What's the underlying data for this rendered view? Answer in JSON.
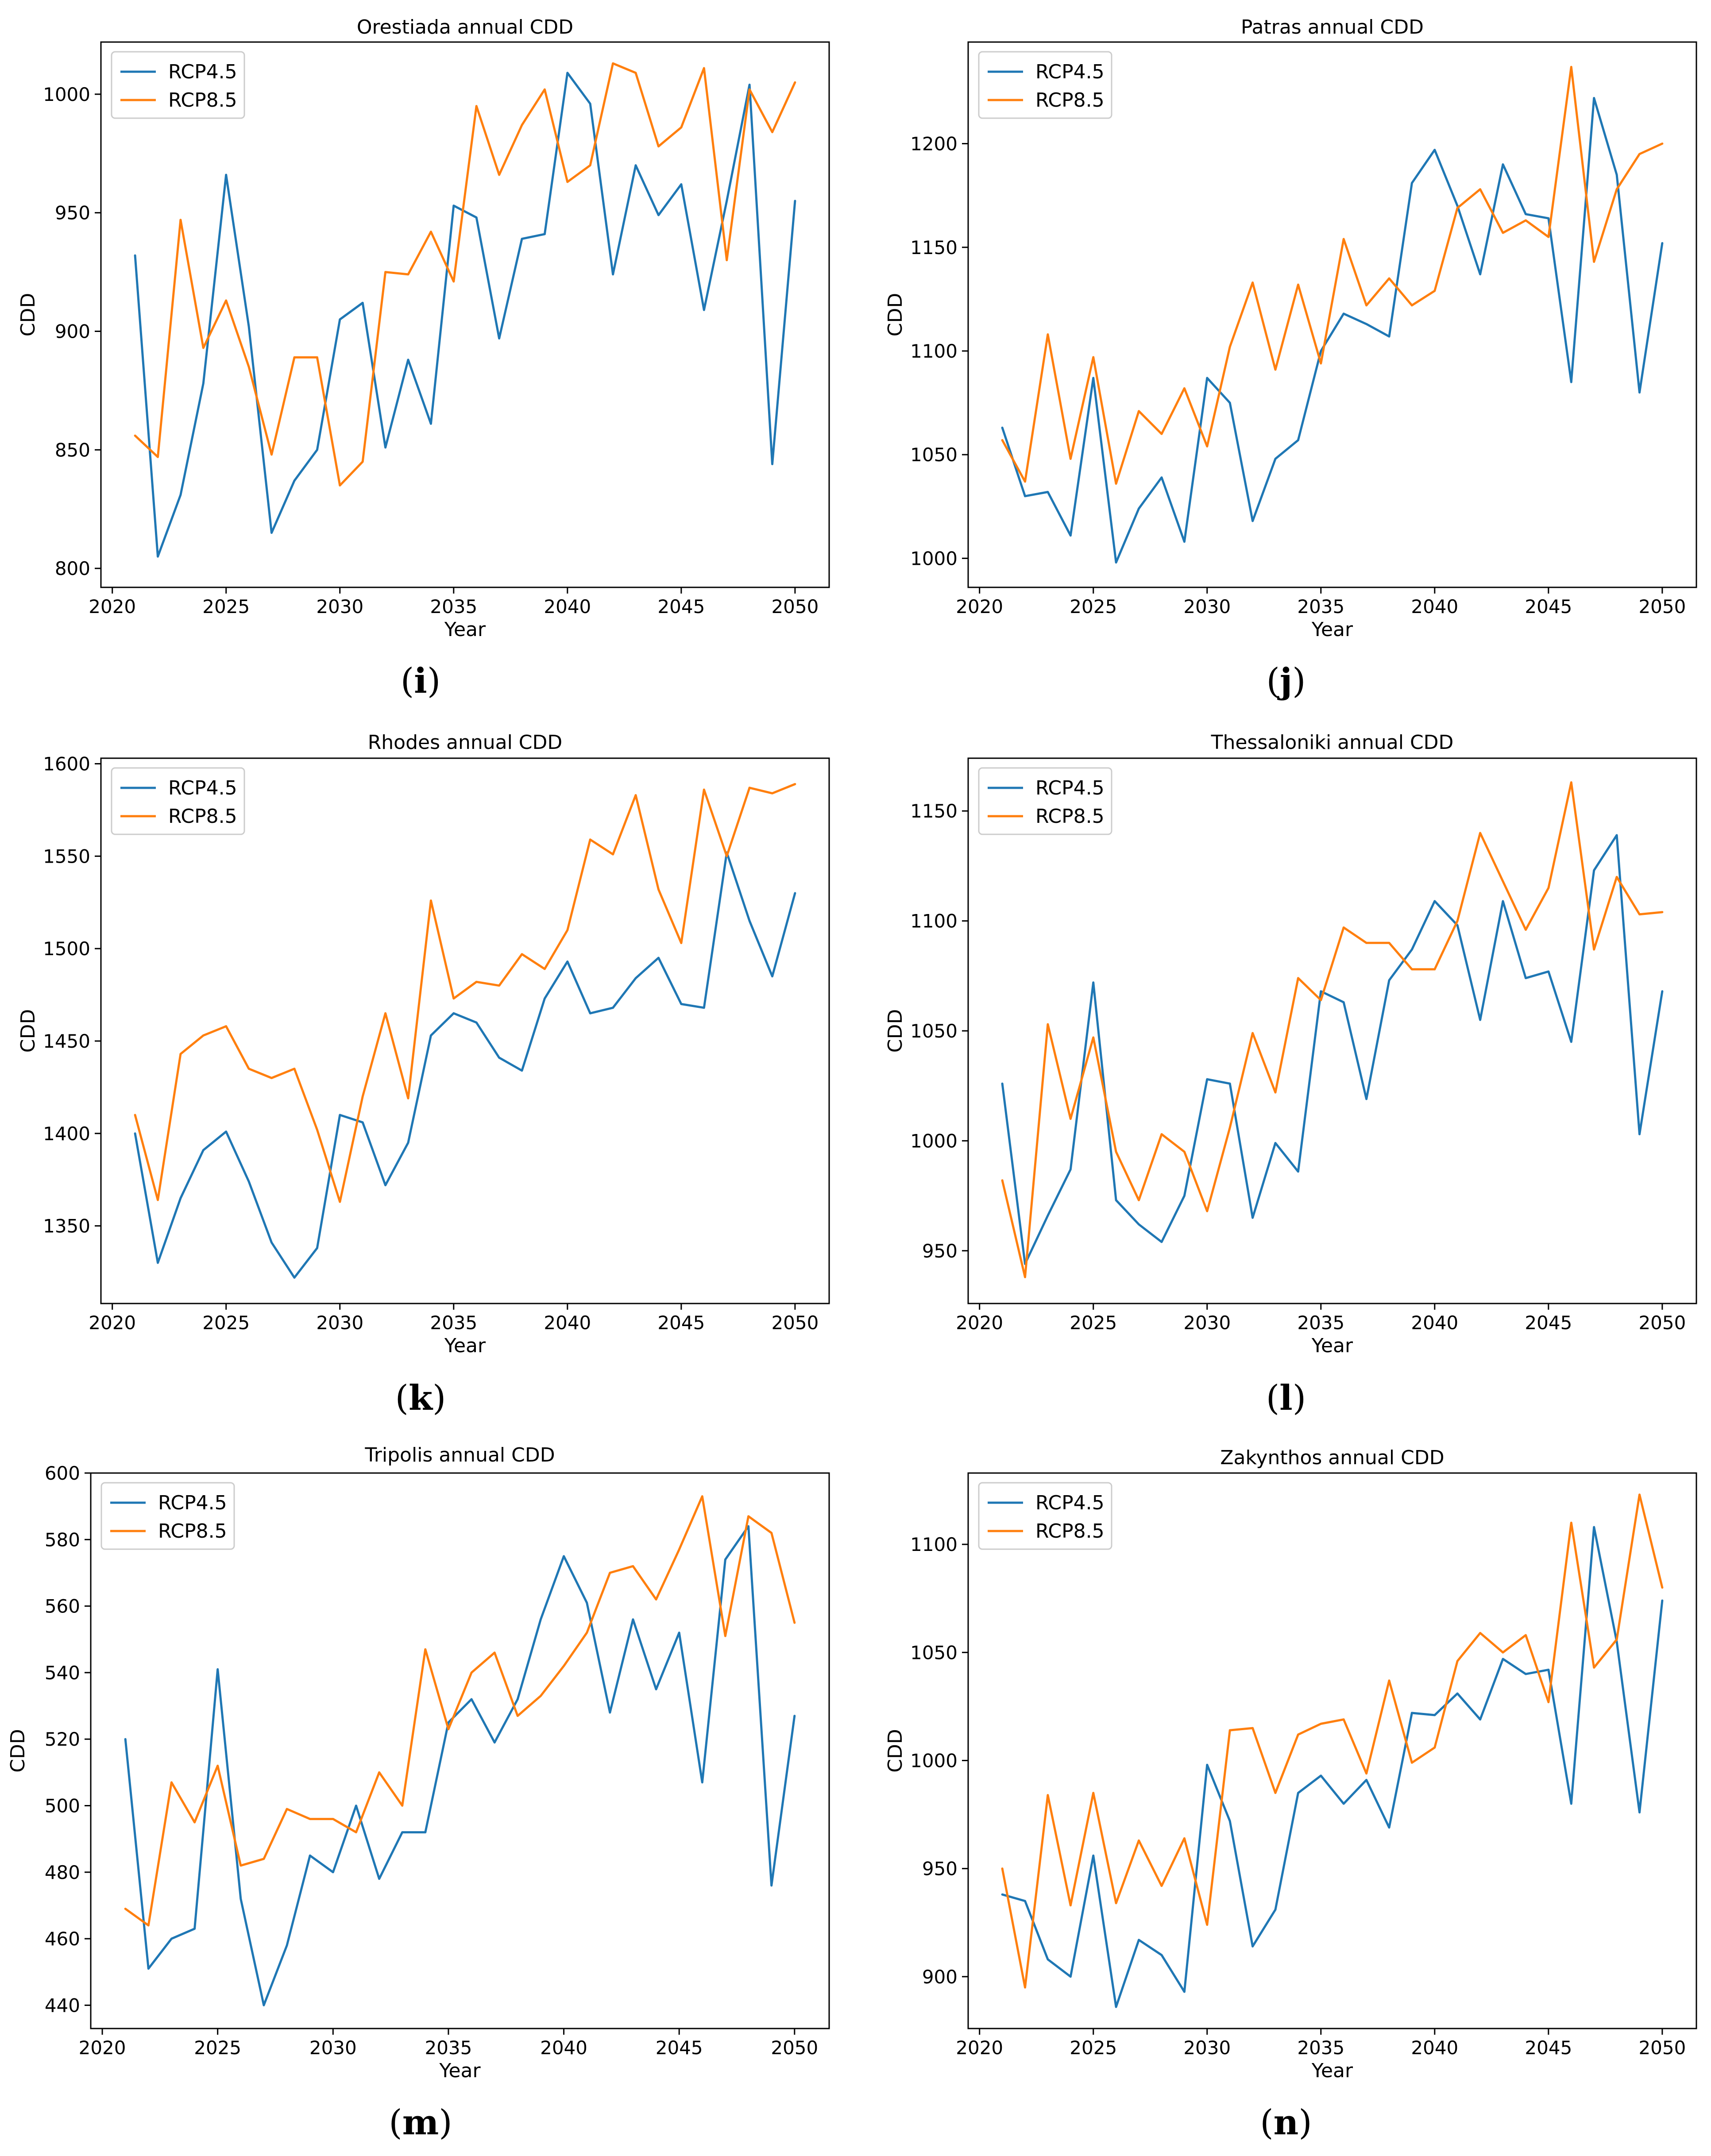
{
  "colors": {
    "RCP4.5": "#1f77b4",
    "RCP8.5": "#ff7f0e"
  },
  "chart_data": [
    {
      "type": "line",
      "panel": "i",
      "title": "Orestiada annual CDD",
      "xlabel": "Year",
      "ylabel": "CDD",
      "xlim": [
        2019.5,
        2051.5
      ],
      "ylim": [
        792,
        1022
      ],
      "xticks": [
        2020,
        2025,
        2030,
        2035,
        2040,
        2045,
        2050
      ],
      "yticks": [
        800,
        850,
        900,
        950,
        1000
      ],
      "legend": [
        "RCP4.5",
        "RCP8.5"
      ],
      "legend_position": "upper-left",
      "x": [
        2021,
        2022,
        2023,
        2024,
        2025,
        2026,
        2027,
        2028,
        2029,
        2030,
        2031,
        2032,
        2033,
        2034,
        2035,
        2036,
        2037,
        2038,
        2039,
        2040,
        2041,
        2042,
        2043,
        2044,
        2045,
        2046,
        2047,
        2048,
        2049,
        2050
      ],
      "series": [
        {
          "name": "RCP4.5",
          "values": [
            932,
            805,
            831,
            878,
            966,
            902,
            815,
            837,
            850,
            905,
            912,
            851,
            888,
            861,
            953,
            948,
            897,
            939,
            941,
            1009,
            996,
            924,
            970,
            949,
            962,
            909,
            955,
            1004,
            844,
            955
          ]
        },
        {
          "name": "RCP8.5",
          "values": [
            856,
            847,
            947,
            893,
            913,
            885,
            848,
            889,
            889,
            835,
            845,
            925,
            924,
            942,
            921,
            995,
            966,
            987,
            1002,
            963,
            970,
            1013,
            1009,
            978,
            986,
            1011,
            930,
            1002,
            984,
            1005
          ]
        }
      ]
    },
    {
      "type": "line",
      "panel": "j",
      "title": "Patras annual CDD",
      "xlabel": "Year",
      "ylabel": "CDD",
      "xlim": [
        2019.5,
        2051.5
      ],
      "ylim": [
        986,
        1249
      ],
      "xticks": [
        2020,
        2025,
        2030,
        2035,
        2040,
        2045,
        2050
      ],
      "yticks": [
        1000,
        1050,
        1100,
        1150,
        1200
      ],
      "legend": [
        "RCP4.5",
        "RCP8.5"
      ],
      "legend_position": "upper-left",
      "x": [
        2021,
        2022,
        2023,
        2024,
        2025,
        2026,
        2027,
        2028,
        2029,
        2030,
        2031,
        2032,
        2033,
        2034,
        2035,
        2036,
        2037,
        2038,
        2039,
        2040,
        2041,
        2042,
        2043,
        2044,
        2045,
        2046,
        2047,
        2048,
        2049,
        2050
      ],
      "series": [
        {
          "name": "RCP4.5",
          "values": [
            1063,
            1030,
            1032,
            1011,
            1087,
            998,
            1024,
            1039,
            1008,
            1087,
            1075,
            1018,
            1048,
            1057,
            1100,
            1118,
            1113,
            1107,
            1181,
            1197,
            1170,
            1137,
            1190,
            1166,
            1164,
            1085,
            1222,
            1185,
            1080,
            1152
          ]
        },
        {
          "name": "RCP8.5",
          "values": [
            1057,
            1037,
            1108,
            1048,
            1097,
            1036,
            1071,
            1060,
            1082,
            1054,
            1102,
            1133,
            1091,
            1132,
            1094,
            1154,
            1122,
            1135,
            1122,
            1129,
            1169,
            1178,
            1157,
            1163,
            1155,
            1237,
            1143,
            1178,
            1195,
            1200
          ]
        }
      ]
    },
    {
      "type": "line",
      "panel": "k",
      "title": "Rhodes annual CDD",
      "xlabel": "Year",
      "ylabel": "CDD",
      "xlim": [
        2019.5,
        2051.5
      ],
      "ylim": [
        1308,
        1603
      ],
      "xticks": [
        2020,
        2025,
        2030,
        2035,
        2040,
        2045,
        2050
      ],
      "yticks": [
        1350,
        1400,
        1450,
        1500,
        1550,
        1600
      ],
      "legend": [
        "RCP4.5",
        "RCP8.5"
      ],
      "legend_position": "upper-left",
      "x": [
        2021,
        2022,
        2023,
        2024,
        2025,
        2026,
        2027,
        2028,
        2029,
        2030,
        2031,
        2032,
        2033,
        2034,
        2035,
        2036,
        2037,
        2038,
        2039,
        2040,
        2041,
        2042,
        2043,
        2044,
        2045,
        2046,
        2047,
        2048,
        2049,
        2050
      ],
      "series": [
        {
          "name": "RCP4.5",
          "values": [
            1400,
            1330,
            1365,
            1391,
            1401,
            1374,
            1341,
            1322,
            1338,
            1410,
            1406,
            1372,
            1395,
            1453,
            1465,
            1460,
            1441,
            1434,
            1473,
            1493,
            1465,
            1468,
            1484,
            1495,
            1470,
            1468,
            1552,
            1515,
            1485,
            1530
          ]
        },
        {
          "name": "RCP8.5",
          "values": [
            1410,
            1364,
            1443,
            1453,
            1458,
            1435,
            1430,
            1435,
            1402,
            1363,
            1420,
            1465,
            1419,
            1526,
            1473,
            1482,
            1480,
            1497,
            1489,
            1510,
            1559,
            1551,
            1583,
            1532,
            1503,
            1586,
            1550,
            1587,
            1584,
            1589
          ]
        }
      ]
    },
    {
      "type": "line",
      "panel": "l",
      "title": "Thessaloniki annual CDD",
      "xlabel": "Year",
      "ylabel": "CDD",
      "xlim": [
        2019.5,
        2051.5
      ],
      "ylim": [
        926,
        1174
      ],
      "xticks": [
        2020,
        2025,
        2030,
        2035,
        2040,
        2045,
        2050
      ],
      "yticks": [
        950,
        1000,
        1050,
        1100,
        1150
      ],
      "legend": [
        "RCP4.5",
        "RCP8.5"
      ],
      "legend_position": "upper-left",
      "x": [
        2021,
        2022,
        2023,
        2024,
        2025,
        2026,
        2027,
        2028,
        2029,
        2030,
        2031,
        2032,
        2033,
        2034,
        2035,
        2036,
        2037,
        2038,
        2039,
        2040,
        2041,
        2042,
        2043,
        2044,
        2045,
        2046,
        2047,
        2048,
        2049,
        2050
      ],
      "series": [
        {
          "name": "RCP4.5",
          "values": [
            1026,
            944,
            966,
            987,
            1072,
            973,
            962,
            954,
            975,
            1028,
            1026,
            965,
            999,
            986,
            1068,
            1063,
            1019,
            1073,
            1087,
            1109,
            1098,
            1055,
            1109,
            1074,
            1077,
            1045,
            1123,
            1139,
            1003,
            1068
          ]
        },
        {
          "name": "RCP8.5",
          "values": [
            982,
            938,
            1053,
            1010,
            1047,
            995,
            973,
            1003,
            995,
            968,
            1006,
            1049,
            1022,
            1074,
            1064,
            1097,
            1090,
            1090,
            1078,
            1078,
            1100,
            1140,
            1118,
            1096,
            1115,
            1163,
            1087,
            1120,
            1103,
            1104
          ]
        }
      ]
    },
    {
      "type": "line",
      "panel": "m",
      "title": "Tripolis annual CDD",
      "xlabel": "Year",
      "ylabel": "CDD",
      "xlim": [
        2019.5,
        2051.5
      ],
      "ylim": [
        433,
        600
      ],
      "xticks": [
        2020,
        2025,
        2030,
        2035,
        2040,
        2045,
        2050
      ],
      "yticks": [
        440,
        460,
        480,
        500,
        520,
        540,
        560,
        580,
        600
      ],
      "legend": [
        "RCP4.5",
        "RCP8.5"
      ],
      "legend_position": "upper-left",
      "x": [
        2021,
        2022,
        2023,
        2024,
        2025,
        2026,
        2027,
        2028,
        2029,
        2030,
        2031,
        2032,
        2033,
        2034,
        2035,
        2036,
        2037,
        2038,
        2039,
        2040,
        2041,
        2042,
        2043,
        2044,
        2045,
        2046,
        2047,
        2048,
        2049,
        2050
      ],
      "series": [
        {
          "name": "RCP4.5",
          "values": [
            520,
            451,
            460,
            463,
            541,
            472,
            440,
            458,
            485,
            480,
            500,
            478,
            492,
            492,
            525,
            532,
            519,
            532,
            556,
            575,
            561,
            528,
            556,
            535,
            552,
            507,
            574,
            584,
            476,
            527
          ]
        },
        {
          "name": "RCP8.5",
          "values": [
            469,
            464,
            507,
            495,
            512,
            482,
            484,
            499,
            496,
            496,
            492,
            510,
            500,
            547,
            523,
            540,
            546,
            527,
            533,
            542,
            552,
            570,
            572,
            562,
            577,
            593,
            551,
            587,
            582,
            555
          ]
        }
      ]
    },
    {
      "type": "line",
      "panel": "n",
      "title": "Zakynthos annual CDD",
      "xlabel": "Year",
      "ylabel": "CDD",
      "xlim": [
        2019.5,
        2051.5
      ],
      "ylim": [
        876,
        1133
      ],
      "xticks": [
        2020,
        2025,
        2030,
        2035,
        2040,
        2045,
        2050
      ],
      "yticks": [
        900,
        950,
        1000,
        1050,
        1100
      ],
      "legend": [
        "RCP4.5",
        "RCP8.5"
      ],
      "legend_position": "upper-left",
      "x": [
        2021,
        2022,
        2023,
        2024,
        2025,
        2026,
        2027,
        2028,
        2029,
        2030,
        2031,
        2032,
        2033,
        2034,
        2035,
        2036,
        2037,
        2038,
        2039,
        2040,
        2041,
        2042,
        2043,
        2044,
        2045,
        2046,
        2047,
        2048,
        2049,
        2050
      ],
      "series": [
        {
          "name": "RCP4.5",
          "values": [
            938,
            935,
            908,
            900,
            956,
            886,
            917,
            910,
            893,
            998,
            972,
            914,
            931,
            985,
            993,
            980,
            991,
            969,
            1022,
            1021,
            1031,
            1019,
            1047,
            1040,
            1042,
            980,
            1108,
            1055,
            976,
            1074
          ]
        },
        {
          "name": "RCP8.5",
          "values": [
            950,
            895,
            984,
            933,
            985,
            934,
            963,
            942,
            964,
            924,
            1014,
            1015,
            985,
            1012,
            1017,
            1019,
            994,
            1037,
            999,
            1006,
            1046,
            1059,
            1050,
            1058,
            1027,
            1110,
            1043,
            1056,
            1123,
            1080
          ]
        }
      ]
    }
  ]
}
